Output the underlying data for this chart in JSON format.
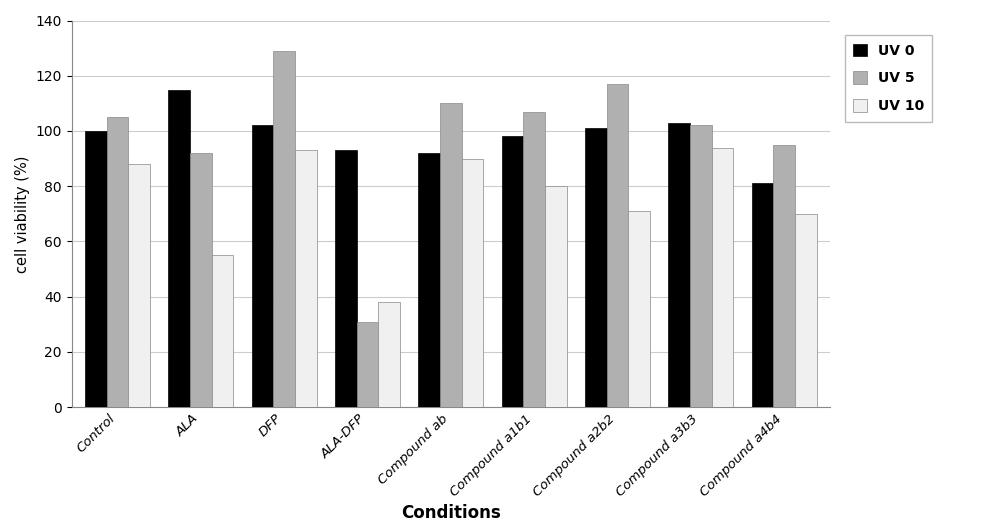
{
  "categories": [
    "Control",
    "ALA",
    "DFP",
    "ALA-DFP",
    "Compound ab",
    "Compound a1b1",
    "Compound a2b2",
    "Compound a3b3",
    "Compound a4b4"
  ],
  "series": {
    "UV 0": [
      100,
      115,
      102,
      93,
      92,
      98,
      101,
      103,
      81
    ],
    "UV 5": [
      105,
      92,
      129,
      31,
      110,
      107,
      117,
      102,
      95
    ],
    "UV 10": [
      88,
      55,
      93,
      38,
      90,
      80,
      71,
      94,
      70
    ]
  },
  "colors": {
    "UV 0": "#000000",
    "UV 5": "#b0b0b0",
    "UV 10": "#f0f0f0"
  },
  "edge_colors": {
    "UV 0": "#000000",
    "UV 5": "#888888",
    "UV 10": "#888888"
  },
  "legend_labels": [
    "UV 0",
    "UV 5",
    "UV 10"
  ],
  "xlabel": "Conditions",
  "ylabel": "cell viability (%)",
  "ylim": [
    0,
    140
  ],
  "yticks": [
    0,
    20,
    40,
    60,
    80,
    100,
    120,
    140
  ],
  "title": "",
  "bar_width": 0.26,
  "figsize": [
    10.0,
    5.22
  ],
  "dpi": 100,
  "background_color": "#ffffff",
  "grid_color": "#cccccc"
}
